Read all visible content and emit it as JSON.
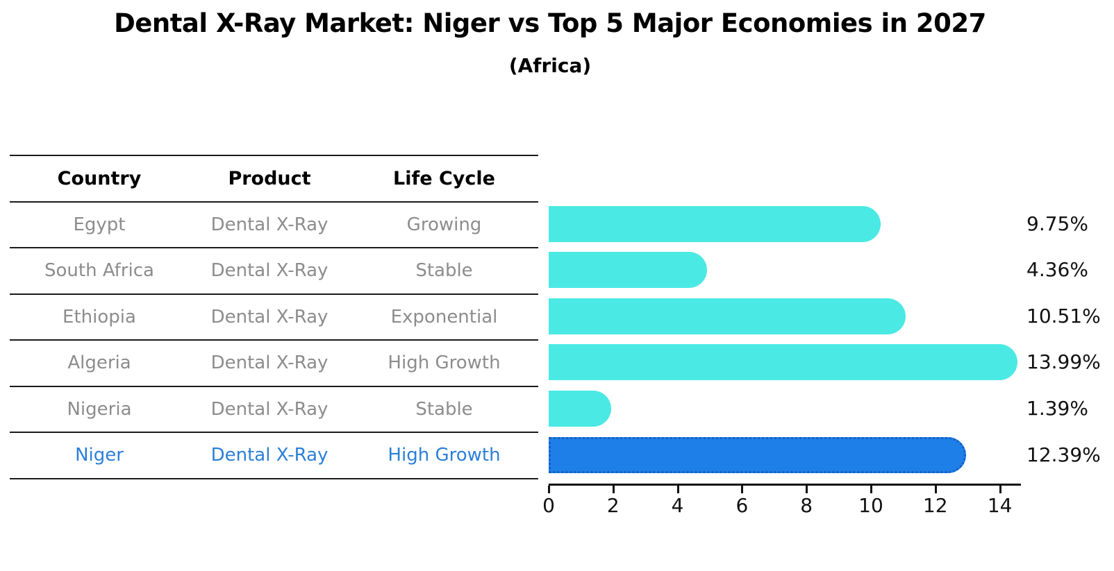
{
  "title": "Dental X-Ray Market: Niger vs Top 5 Major Economies in 2027",
  "subtitle": "(Africa)",
  "table": {
    "headers": [
      "Country",
      "Product",
      "Life Cycle"
    ],
    "rows": [
      {
        "country": "Egypt",
        "product": "Dental X-Ray",
        "life_cycle": "Growing",
        "highlight": false
      },
      {
        "country": "South Africa",
        "product": "Dental X-Ray",
        "life_cycle": "Stable",
        "highlight": false
      },
      {
        "country": "Ethiopia",
        "product": "Dental X-Ray",
        "life_cycle": "Exponential",
        "highlight": false
      },
      {
        "country": "Algeria",
        "product": "Dental X-Ray",
        "life_cycle": "High Growth",
        "highlight": false
      },
      {
        "country": "Nigeria",
        "product": "Dental X-Ray",
        "life_cycle": "Stable",
        "highlight": false
      },
      {
        "country": "Niger",
        "product": "Dental X-Ray",
        "life_cycle": "High Growth",
        "highlight": true
      }
    ]
  },
  "chart_data": {
    "type": "bar",
    "orientation": "horizontal",
    "title": "Dental X-Ray Market: Niger vs Top 5 Major Economies in 2027",
    "subtitle": "(Africa)",
    "categories": [
      "Egypt",
      "South Africa",
      "Ethiopia",
      "Algeria",
      "Nigeria",
      "Niger"
    ],
    "values": [
      9.75,
      4.36,
      10.51,
      13.99,
      1.39,
      12.39
    ],
    "value_labels": [
      "9.75%",
      "4.36%",
      "10.51%",
      "13.99%",
      "1.39%",
      "12.39%"
    ],
    "unit": "%",
    "xticks": [
      0,
      2,
      4,
      6,
      8,
      10,
      12,
      14
    ],
    "xlim": [
      0,
      14.65
    ],
    "grid": false,
    "legend": false,
    "bar_color": "#4be9e4",
    "highlight_color": "#1e7fe8",
    "highlight_border_color": "#1261c4",
    "highlight_index": 5
  },
  "colors": {
    "accent_cyan": "#4be9e4",
    "accent_blue": "#1e7fe8",
    "highlight_text": "#2b7fd9",
    "table_text": "#8c8c8c",
    "heading_text": "#000000",
    "background": "#ffffff"
  }
}
